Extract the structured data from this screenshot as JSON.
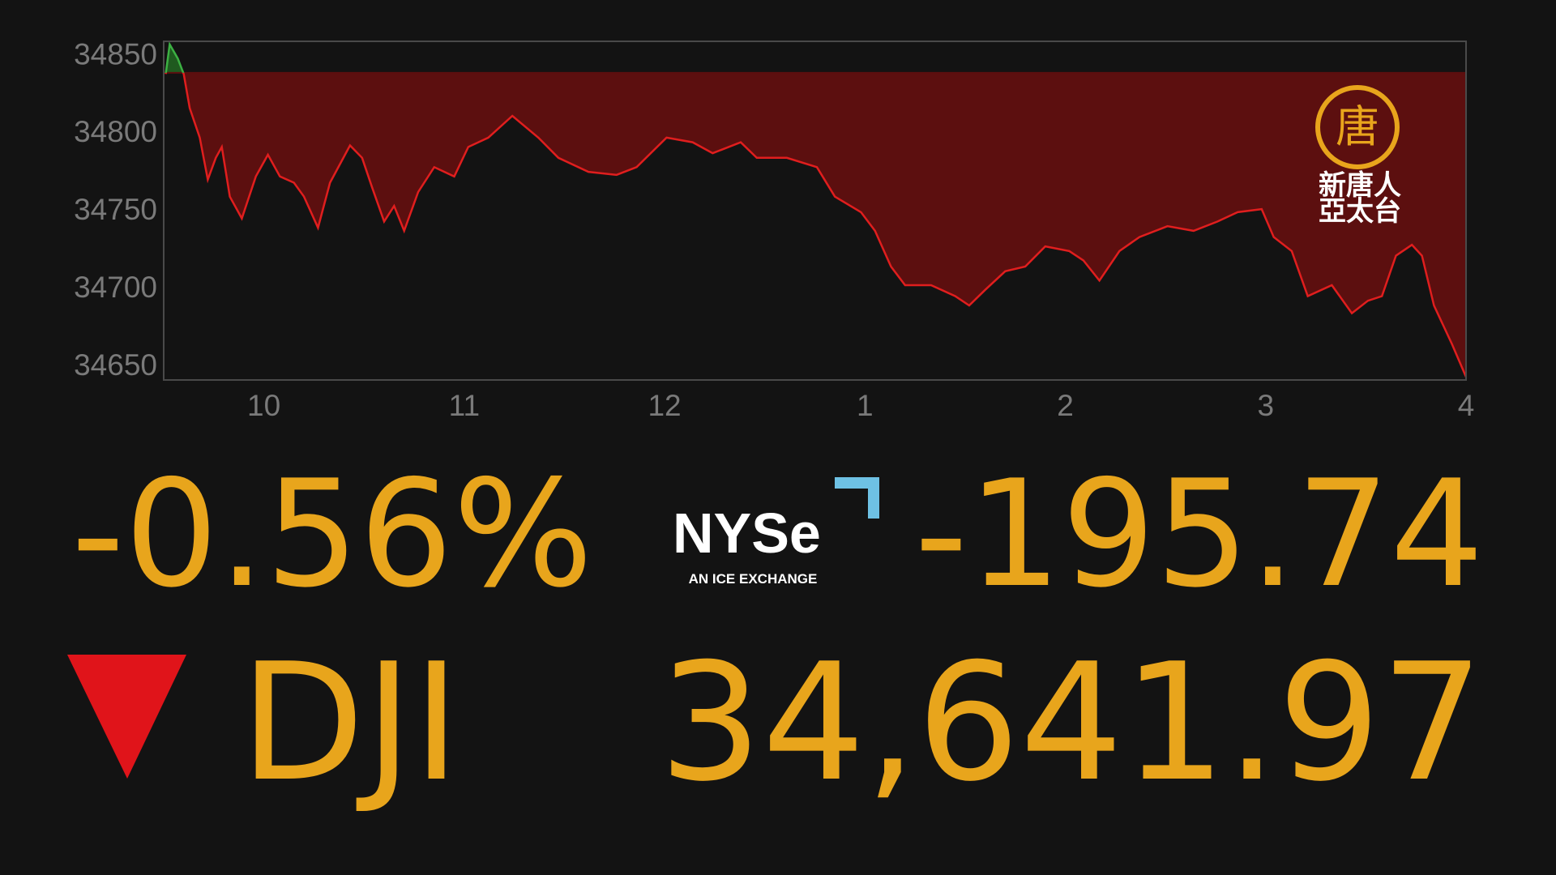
{
  "chart_data": {
    "type": "area",
    "x": [
      9.51,
      9.53,
      9.57,
      9.6,
      9.63,
      9.68,
      9.72,
      9.76,
      9.79,
      9.83,
      9.89,
      9.96,
      10.02,
      10.08,
      10.15,
      10.2,
      10.27,
      10.33,
      10.43,
      10.49,
      10.54,
      10.6,
      10.65,
      10.7,
      10.77,
      10.85,
      10.95,
      11.02,
      11.12,
      11.24,
      11.37,
      11.47,
      11.62,
      11.76,
      11.86,
      12.01,
      12.14,
      12.24,
      12.38,
      12.46,
      12.61,
      12.76,
      12.85,
      12.98,
      13.05,
      13.13,
      13.2,
      13.33,
      13.45,
      13.52,
      13.6,
      13.7,
      13.8,
      13.9,
      14.02,
      14.09,
      14.17,
      14.27,
      14.37,
      14.51,
      14.64,
      14.76,
      14.86,
      14.98,
      15.04,
      15.13,
      15.21,
      15.33,
      15.43,
      15.51,
      15.58,
      15.65,
      15.73,
      15.78,
      15.84,
      15.93,
      16.0
    ],
    "values": [
      34837,
      34856,
      34847,
      34837,
      34815,
      34796,
      34769,
      34783,
      34790,
      34758,
      34744,
      34771,
      34785,
      34771,
      34767,
      34758,
      34738,
      34767,
      34791,
      34783,
      34764,
      34742,
      34752,
      34736,
      34761,
      34777,
      34771,
      34790,
      34796,
      34810,
      34796,
      34783,
      34774,
      34772,
      34777,
      34796,
      34793,
      34786,
      34793,
      34783,
      34783,
      34777,
      34758,
      34748,
      34736,
      34713,
      34701,
      34701,
      34694,
      34688,
      34698,
      34710,
      34713,
      34726,
      34723,
      34717,
      34704,
      34723,
      34732,
      34739,
      34736,
      34742,
      34748,
      34750,
      34732,
      34723,
      34694,
      34701,
      34683,
      34691,
      34694,
      34720,
      34727,
      34720,
      34688,
      34663,
      34642
    ],
    "baseline": 34837.71,
    "up_color": "#3cb043",
    "down_color": "#e01e1e",
    "up_fill": "#1f5a1f",
    "down_fill": "#5c0f0f",
    "xlim": [
      9.5,
      16
    ],
    "ylim": [
      34640,
      34858
    ],
    "xticks": [
      10,
      11,
      12,
      {
        "value": 13,
        "label": "1"
      },
      {
        "value": 14,
        "label": "2"
      },
      {
        "value": 15,
        "label": "3"
      },
      {
        "value": 16,
        "label": "4"
      }
    ],
    "yticks": [
      34650,
      34700,
      34750,
      34800,
      34850
    ],
    "grid": false
  },
  "display": {
    "percent_change": "-0.56%",
    "point_change": "-195.74",
    "symbol": "DJI",
    "price": "34,641.97"
  },
  "exchange_logo": {
    "name": "NYSe",
    "tagline": "AN ICE EXCHANGE"
  },
  "channel_logo": {
    "mark": "唐",
    "line1": "新唐人",
    "line2": "亞太台"
  }
}
